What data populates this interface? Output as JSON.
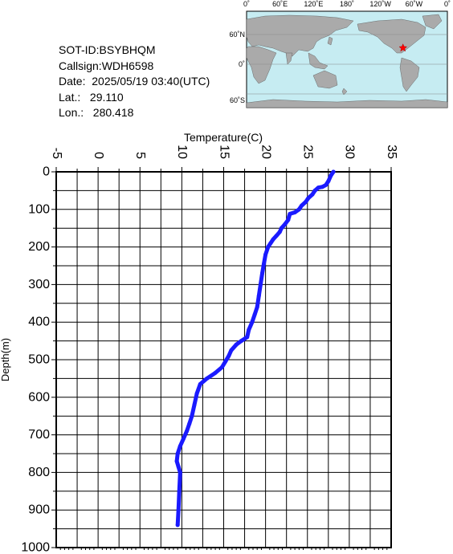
{
  "info": {
    "sot_id": "SOT-ID:BSYBHQM",
    "callsign": "Callsign:WDH6598",
    "date": "Date:  2025/05/19 03:40(UTC)",
    "lat": "Lat.:   29.110",
    "lon": "Lon.:   280.418"
  },
  "map": {
    "top_labels": [
      "0˚",
      "60˚E",
      "120˚E",
      "180˚",
      "120˚W",
      "60˚W",
      "0˚"
    ],
    "side_labels": [
      "60˚N",
      "0˚",
      "60˚S"
    ],
    "colors": {
      "ocean": "#c6ecf2",
      "land": "#aaaaaa",
      "marker": "#ff0000"
    },
    "marker": {
      "lat": 29.11,
      "lon": 280.418
    }
  },
  "chart_data": {
    "type": "line",
    "title": "",
    "xlabel": "Temperature(C)",
    "ylabel": "Depth(m)",
    "xlim": [
      -5,
      35
    ],
    "ylim": [
      1000,
      0
    ],
    "x_ticks": [
      "-5",
      "0",
      "5",
      "10",
      "15",
      "20",
      "25",
      "30",
      "35"
    ],
    "y_ticks": [
      "0",
      "100",
      "200",
      "300",
      "400",
      "500",
      "600",
      "700",
      "800",
      "900",
      "1000"
    ],
    "grid": true,
    "series": [
      {
        "color": "#1a1aff",
        "points": [
          [
            28.1,
            0
          ],
          [
            27.8,
            10
          ],
          [
            27.5,
            25
          ],
          [
            27.2,
            35
          ],
          [
            26.8,
            40
          ],
          [
            26.3,
            42
          ],
          [
            25.9,
            50
          ],
          [
            25.6,
            60
          ],
          [
            25.1,
            70
          ],
          [
            24.8,
            80
          ],
          [
            24.3,
            90
          ],
          [
            24.0,
            100
          ],
          [
            23.5,
            108
          ],
          [
            22.9,
            112
          ],
          [
            22.8,
            120
          ],
          [
            22.7,
            128
          ],
          [
            22.3,
            140
          ],
          [
            21.9,
            150
          ],
          [
            21.7,
            160
          ],
          [
            21.3,
            170
          ],
          [
            20.9,
            180
          ],
          [
            20.6,
            190
          ],
          [
            20.3,
            200
          ],
          [
            20.0,
            220
          ],
          [
            19.8,
            245
          ],
          [
            19.6,
            270
          ],
          [
            19.4,
            300
          ],
          [
            19.2,
            330
          ],
          [
            19.0,
            360
          ],
          [
            18.7,
            380
          ],
          [
            18.4,
            400
          ],
          [
            18.0,
            420
          ],
          [
            17.8,
            440
          ],
          [
            17.1,
            450
          ],
          [
            16.5,
            460
          ],
          [
            15.9,
            475
          ],
          [
            15.6,
            490
          ],
          [
            15.2,
            505
          ],
          [
            14.8,
            520
          ],
          [
            14.0,
            535
          ],
          [
            13.0,
            550
          ],
          [
            12.2,
            565
          ],
          [
            11.8,
            590
          ],
          [
            11.5,
            620
          ],
          [
            11.2,
            650
          ],
          [
            10.9,
            670
          ],
          [
            10.6,
            690
          ],
          [
            10.2,
            710
          ],
          [
            9.8,
            730
          ],
          [
            9.5,
            750
          ],
          [
            9.4,
            770
          ],
          [
            9.6,
            785
          ],
          [
            9.8,
            800
          ],
          [
            9.7,
            850
          ],
          [
            9.6,
            900
          ],
          [
            9.5,
            940
          ]
        ]
      }
    ]
  }
}
